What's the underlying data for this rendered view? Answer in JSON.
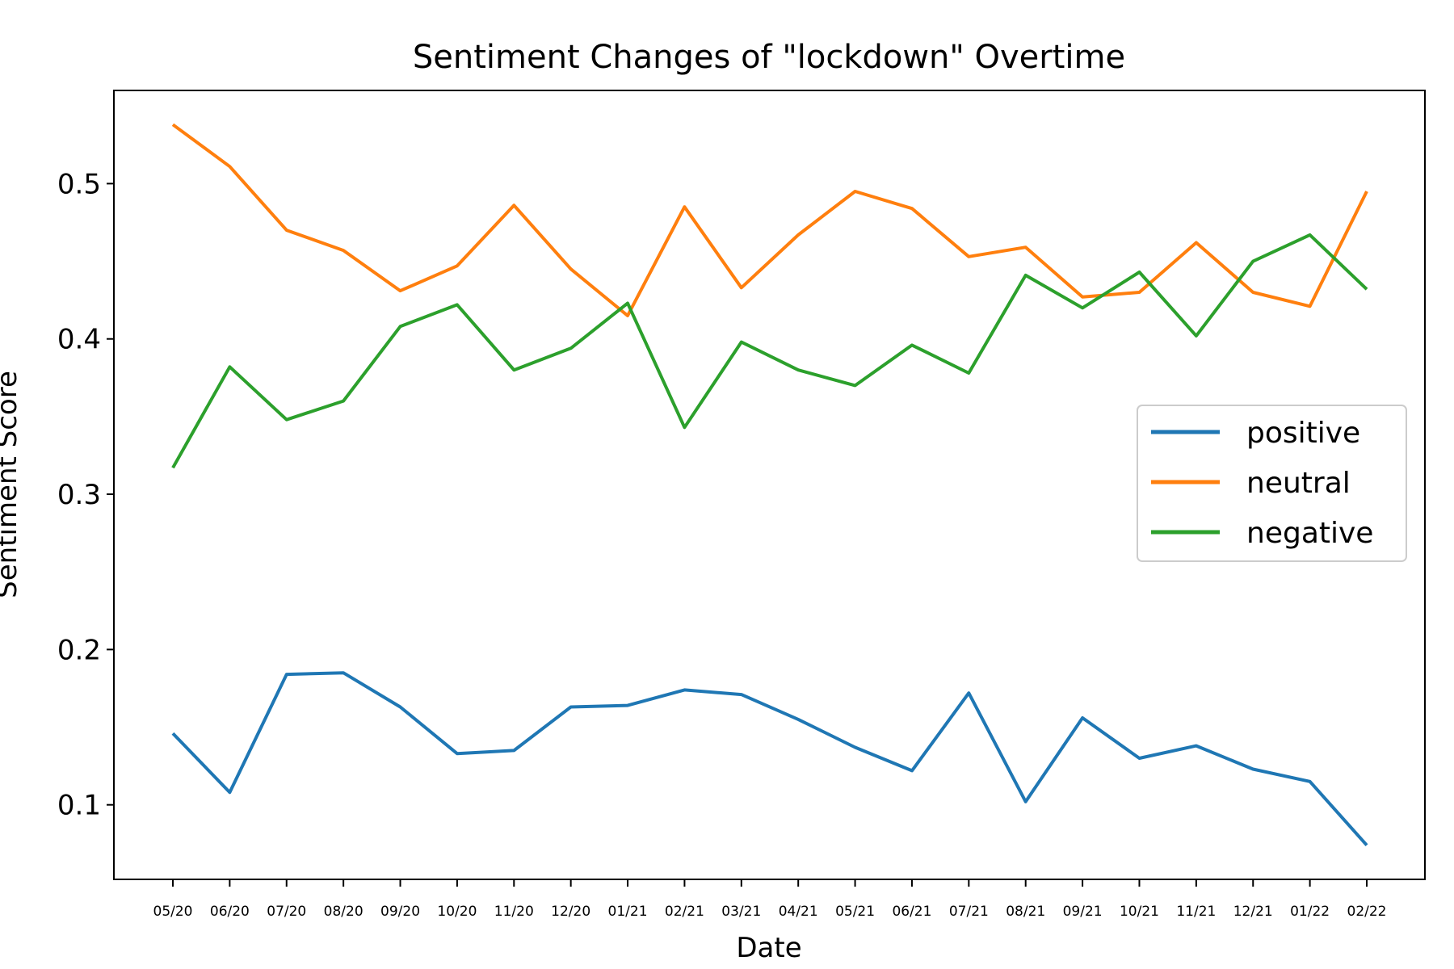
{
  "chart_data": {
    "type": "line",
    "title": "Sentiment Changes of \"lockdown\" Overtime",
    "xlabel": "Date",
    "ylabel": "Sentiment Score",
    "categories": [
      "05/20",
      "06/20",
      "07/20",
      "08/20",
      "09/20",
      "10/20",
      "11/20",
      "12/20",
      "01/21",
      "02/21",
      "03/21",
      "04/21",
      "05/21",
      "06/21",
      "07/21",
      "08/21",
      "09/21",
      "10/21",
      "11/21",
      "12/21",
      "01/22",
      "02/22"
    ],
    "ylim": [
      0.052,
      0.56
    ],
    "yticks": [
      0.1,
      0.2,
      0.3,
      0.4,
      0.5
    ],
    "ytick_labels": [
      "0.1",
      "0.2",
      "0.3",
      "0.4",
      "0.5"
    ],
    "grid": false,
    "legend_position": "center-right",
    "series": [
      {
        "name": "positive",
        "color": "#1f77b4",
        "values": [
          0.146,
          0.108,
          0.184,
          0.185,
          0.163,
          0.133,
          0.135,
          0.163,
          0.164,
          0.174,
          0.171,
          0.155,
          0.137,
          0.122,
          0.172,
          0.102,
          0.156,
          0.13,
          0.138,
          0.123,
          0.115,
          0.074
        ]
      },
      {
        "name": "neutral",
        "color": "#ff7f0e",
        "values": [
          0.538,
          0.511,
          0.47,
          0.457,
          0.431,
          0.447,
          0.486,
          0.445,
          0.415,
          0.485,
          0.433,
          0.467,
          0.495,
          0.484,
          0.453,
          0.459,
          0.427,
          0.43,
          0.462,
          0.43,
          0.421,
          0.495
        ]
      },
      {
        "name": "negative",
        "color": "#2ca02c",
        "values": [
          0.317,
          0.382,
          0.348,
          0.36,
          0.408,
          0.422,
          0.38,
          0.394,
          0.423,
          0.343,
          0.398,
          0.38,
          0.37,
          0.396,
          0.378,
          0.441,
          0.42,
          0.443,
          0.402,
          0.45,
          0.467,
          0.432
        ]
      }
    ]
  }
}
